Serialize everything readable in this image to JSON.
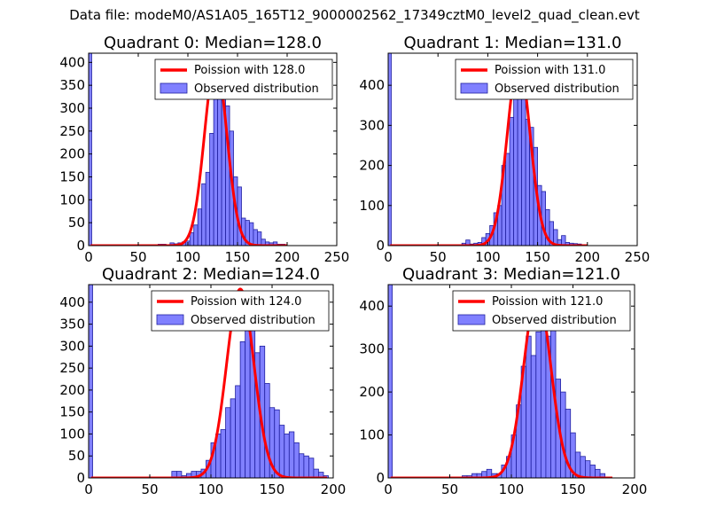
{
  "suptitle": "Data file: modeM0/AS1A05_165T12_9000002562_17349cztM0_level2_quad_clean.evt",
  "colors": {
    "hist_fill": "#8080ff",
    "hist_edge": "#2020a0",
    "poisson": "#ff0000"
  },
  "chart_data": [
    {
      "type": "bar",
      "title": "Quadrant 0: Median=128.0",
      "median": 128,
      "xlim": [
        0,
        250
      ],
      "ylim": [
        0,
        420
      ],
      "xticks": [
        0,
        50,
        100,
        150,
        200,
        250
      ],
      "xtick_labels": [
        "0",
        "50",
        "100",
        "150",
        "200",
        "250"
      ],
      "yticks": [
        0,
        50,
        100,
        150,
        200,
        250,
        300,
        350,
        400
      ],
      "ytick_labels": [
        "0",
        "50",
        "100",
        "150",
        "200",
        "250",
        "300",
        "350",
        "400"
      ],
      "legend": [
        "Poission with 128.0",
        "Observed distribution"
      ],
      "legend_loc": "upper right",
      "bin_width": 4,
      "zero_bar_value": 420,
      "bins": [
        [
          70,
          3
        ],
        [
          74,
          3
        ],
        [
          78,
          2
        ],
        [
          82,
          6
        ],
        [
          86,
          4
        ],
        [
          90,
          6
        ],
        [
          94,
          8
        ],
        [
          98,
          10
        ],
        [
          102,
          28
        ],
        [
          106,
          45
        ],
        [
          110,
          80
        ],
        [
          114,
          135
        ],
        [
          118,
          160
        ],
        [
          122,
          245
        ],
        [
          126,
          345
        ],
        [
          130,
          400
        ],
        [
          134,
          360
        ],
        [
          138,
          305
        ],
        [
          142,
          250
        ],
        [
          146,
          150
        ],
        [
          150,
          128
        ],
        [
          154,
          60
        ],
        [
          158,
          55
        ],
        [
          162,
          50
        ],
        [
          166,
          35
        ],
        [
          170,
          30
        ],
        [
          174,
          14
        ],
        [
          178,
          8
        ],
        [
          182,
          6
        ],
        [
          186,
          8
        ],
        [
          190,
          3
        ],
        [
          194,
          3
        ]
      ],
      "poisson_mean": 128,
      "poisson_peak": 400,
      "poisson_x": [
        2,
        200
      ]
    },
    {
      "type": "bar",
      "title": "Quadrant 1: Median=131.0",
      "median": 131,
      "xlim": [
        0,
        250
      ],
      "ylim": [
        0,
        480
      ],
      "xticks": [
        0,
        50,
        100,
        150,
        200,
        250
      ],
      "xtick_labels": [
        "0",
        "50",
        "100",
        "150",
        "200",
        "250"
      ],
      "yticks": [
        0,
        100,
        200,
        300,
        400
      ],
      "ytick_labels": [
        "0",
        "100",
        "200",
        "300",
        "400"
      ],
      "legend": [
        "Poission with 131.0",
        "Observed distribution"
      ],
      "legend_loc": "upper right",
      "bin_width": 4,
      "zero_bar_value": 480,
      "bins": [
        [
          74,
          6
        ],
        [
          78,
          14
        ],
        [
          82,
          4
        ],
        [
          86,
          6
        ],
        [
          90,
          8
        ],
        [
          94,
          20
        ],
        [
          98,
          30
        ],
        [
          102,
          50
        ],
        [
          106,
          82
        ],
        [
          110,
          100
        ],
        [
          114,
          200
        ],
        [
          118,
          230
        ],
        [
          122,
          320
        ],
        [
          126,
          440
        ],
        [
          130,
          420
        ],
        [
          134,
          450
        ],
        [
          138,
          315
        ],
        [
          142,
          295
        ],
        [
          146,
          245
        ],
        [
          150,
          150
        ],
        [
          154,
          135
        ],
        [
          158,
          90
        ],
        [
          162,
          60
        ],
        [
          166,
          40
        ],
        [
          170,
          15
        ],
        [
          174,
          25
        ],
        [
          178,
          8
        ],
        [
          182,
          6
        ],
        [
          186,
          5
        ],
        [
          190,
          4
        ]
      ],
      "poisson_mean": 131,
      "poisson_peak": 460,
      "poisson_x": [
        2,
        200
      ]
    },
    {
      "type": "bar",
      "title": "Quadrant 2: Median=124.0",
      "median": 124,
      "xlim": [
        0,
        200
      ],
      "ylim": [
        0,
        440
      ],
      "xticks": [
        0,
        50,
        100,
        150,
        200
      ],
      "xtick_labels": [
        "0",
        "50",
        "100",
        "150",
        "200"
      ],
      "yticks": [
        0,
        50,
        100,
        150,
        200,
        250,
        300,
        350,
        400
      ],
      "ytick_labels": [
        "0",
        "50",
        "100",
        "150",
        "200",
        "250",
        "300",
        "350",
        "400"
      ],
      "legend": [
        "Poission with 124.0",
        "Observed distribution"
      ],
      "legend_loc": "upper right",
      "bin_width": 4,
      "zero_bar_value": 440,
      "bins": [
        [
          68,
          15
        ],
        [
          72,
          15
        ],
        [
          76,
          5
        ],
        [
          80,
          10
        ],
        [
          84,
          15
        ],
        [
          88,
          15
        ],
        [
          92,
          20
        ],
        [
          96,
          40
        ],
        [
          100,
          80
        ],
        [
          104,
          100
        ],
        [
          108,
          110
        ],
        [
          112,
          160
        ],
        [
          116,
          180
        ],
        [
          120,
          210
        ],
        [
          124,
          310
        ],
        [
          128,
          410
        ],
        [
          132,
          420
        ],
        [
          136,
          285
        ],
        [
          140,
          300
        ],
        [
          144,
          215
        ],
        [
          148,
          160
        ],
        [
          152,
          155
        ],
        [
          156,
          120
        ],
        [
          160,
          100
        ],
        [
          164,
          105
        ],
        [
          168,
          80
        ],
        [
          172,
          55
        ],
        [
          176,
          50
        ],
        [
          180,
          45
        ],
        [
          184,
          20
        ],
        [
          188,
          13
        ],
        [
          192,
          5
        ]
      ],
      "poisson_mean": 124,
      "poisson_peak": 430,
      "poisson_x": [
        2,
        195
      ]
    },
    {
      "type": "bar",
      "title": "Quadrant 3: Median=121.0",
      "median": 121,
      "xlim": [
        0,
        200
      ],
      "ylim": [
        0,
        450
      ],
      "xticks": [
        0,
        50,
        100,
        150,
        200
      ],
      "xtick_labels": [
        "0",
        "50",
        "100",
        "150",
        "200"
      ],
      "yticks": [
        0,
        100,
        200,
        300,
        400
      ],
      "ytick_labels": [
        "0",
        "100",
        "200",
        "300",
        "400"
      ],
      "legend": [
        "Poission with 121.0",
        "Observed distribution"
      ],
      "legend_loc": "upper right",
      "bin_width": 4,
      "zero_bar_value": 450,
      "bins": [
        [
          60,
          5
        ],
        [
          64,
          5
        ],
        [
          68,
          10
        ],
        [
          72,
          10
        ],
        [
          76,
          15
        ],
        [
          80,
          20
        ],
        [
          84,
          10
        ],
        [
          88,
          10
        ],
        [
          92,
          30
        ],
        [
          96,
          50
        ],
        [
          100,
          100
        ],
        [
          104,
          170
        ],
        [
          108,
          260
        ],
        [
          112,
          330
        ],
        [
          116,
          285
        ],
        [
          120,
          340
        ],
        [
          124,
          420
        ],
        [
          128,
          330
        ],
        [
          132,
          360
        ],
        [
          136,
          230
        ],
        [
          140,
          200
        ],
        [
          144,
          160
        ],
        [
          148,
          105
        ],
        [
          152,
          60
        ],
        [
          156,
          50
        ],
        [
          160,
          40
        ],
        [
          164,
          30
        ],
        [
          168,
          20
        ],
        [
          172,
          10
        ]
      ],
      "poisson_mean": 121,
      "poisson_peak": 430,
      "poisson_x": [
        2,
        182
      ]
    }
  ]
}
